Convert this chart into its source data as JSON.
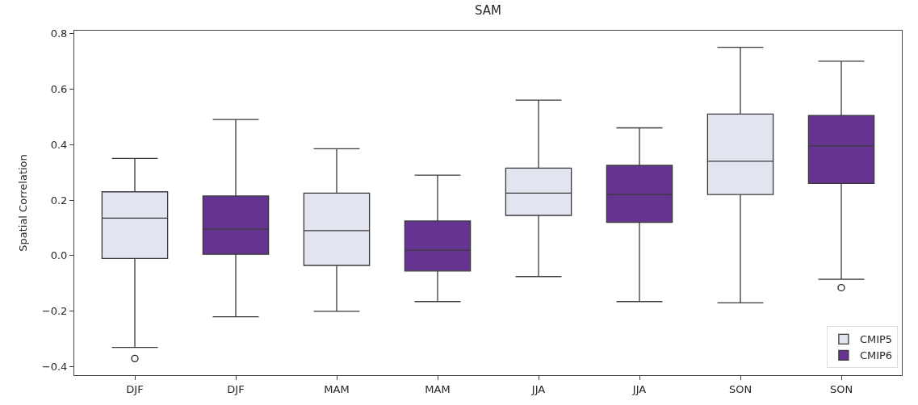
{
  "chart_data": {
    "type": "box",
    "title": "SAM",
    "ylabel": "Spatial Correlation",
    "categories": [
      "DJF",
      "DJF",
      "MAM",
      "MAM",
      "JJA",
      "JJA",
      "SON",
      "SON"
    ],
    "series": [
      {
        "name": "CMIP5",
        "color": "#e2e4ef",
        "boxes": [
          {
            "low": -0.33,
            "q1": -0.01,
            "median": 0.135,
            "q3": 0.23,
            "high": 0.35,
            "outliers": [
              -0.37
            ]
          },
          null,
          {
            "low": -0.2,
            "q1": -0.035,
            "median": 0.09,
            "q3": 0.225,
            "high": 0.385
          },
          null,
          {
            "low": -0.075,
            "q1": 0.145,
            "median": 0.225,
            "q3": 0.315,
            "high": 0.56
          },
          null,
          {
            "low": -0.17,
            "q1": 0.22,
            "median": 0.34,
            "q3": 0.51,
            "high": 0.75
          },
          null
        ]
      },
      {
        "name": "CMIP6",
        "color": "#653490",
        "boxes": [
          null,
          {
            "low": -0.22,
            "q1": 0.005,
            "median": 0.095,
            "q3": 0.215,
            "high": 0.49
          },
          null,
          {
            "low": -0.165,
            "q1": -0.055,
            "median": 0.02,
            "q3": 0.125,
            "high": 0.29
          },
          null,
          {
            "low": -0.165,
            "q1": 0.12,
            "median": 0.22,
            "q3": 0.325,
            "high": 0.46
          },
          null,
          {
            "low": -0.085,
            "q1": 0.26,
            "median": 0.395,
            "q3": 0.505,
            "high": 0.7,
            "outliers": [
              -0.115
            ]
          }
        ]
      }
    ],
    "ylim": [
      -0.43,
      0.81
    ],
    "yticks": [
      -0.4,
      -0.2,
      {
        "value": 0,
        "label": "0.0"
      },
      0.2,
      0.4,
      0.6,
      0.8
    ],
    "legend": "bottom right"
  }
}
